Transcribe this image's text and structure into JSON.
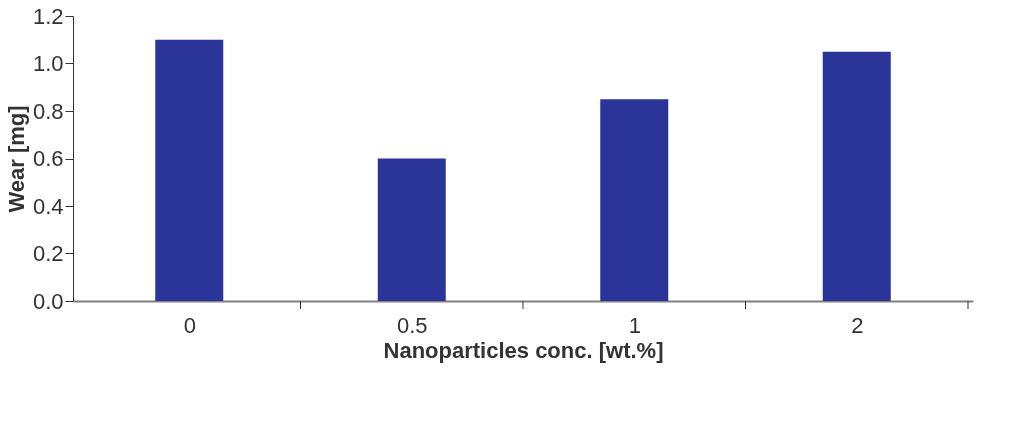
{
  "chart_data": {
    "type": "bar",
    "xlabel": "Nanoparticles conc.  [wt.%]",
    "ylabel": "Wear [mg]",
    "categories": [
      "0",
      "0.5",
      "1",
      "2"
    ],
    "values": [
      1.1,
      0.6,
      0.85,
      1.05
    ],
    "color": "#2b3499",
    "ylim": [
      0,
      1.2
    ],
    "yticks": [
      {
        "value": 0,
        "label": "0.0"
      },
      0.2,
      0.4,
      0.6,
      0.8,
      {
        "value": 1,
        "label": "1.0"
      },
      1.2
    ],
    "grid": false
  }
}
